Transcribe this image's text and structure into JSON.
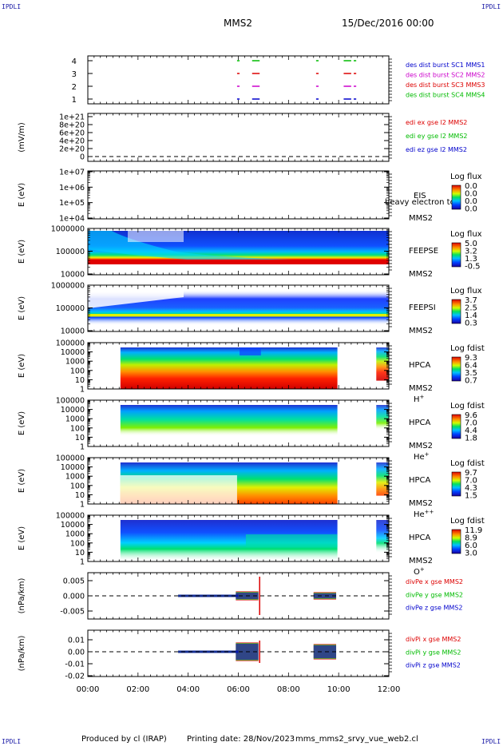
{
  "header": {
    "corner_label": "IPDLI",
    "spacecraft": "MMS2",
    "datetime": "15/Dec/2016 00:00"
  },
  "footer": {
    "produced_by": "Produced by cl (IRAP)",
    "printing_date": "Printing date: 28/Nov/2023",
    "script_name": "mms_mms2_srvy_vue_web2.cl"
  },
  "chart_data": {
    "type": "multi-panel time series / spectrogram",
    "x_axis": {
      "range": [
        "00:00",
        "12:00"
      ],
      "tick_labels": [
        "00:00",
        "02:00",
        "04:00",
        "06:00",
        "08:00",
        "10:00",
        "12:00"
      ]
    },
    "colors": {
      "mms1": "#0000cc",
      "mms2": "#cc00cc",
      "mms3": "#dd0000",
      "mms4": "#00bb00",
      "x": "#dd0000",
      "y": "#00bb00",
      "z": "#0000cc"
    },
    "panels": [
      {
        "id": "burst",
        "y_ticks": [
          "4",
          "3",
          "2",
          "1"
        ],
        "legend": [
          "des dist burst SC1 MMS1",
          "des dist burst SC2 MMS2",
          "des dist burst SC3 MMS3",
          "des dist burst SC4 MMS4"
        ],
        "intervals_hours": [
          [
            5.95,
            6.05
          ],
          [
            6.55,
            6.85
          ],
          [
            9.1,
            9.2
          ],
          [
            10.2,
            10.5
          ],
          [
            10.6,
            10.7
          ]
        ]
      },
      {
        "id": "edi",
        "ylabel": "(mV/m)",
        "y_ticks": [
          "1e+21",
          "8e+20",
          "6e+20",
          "4e+20",
          "2e+20",
          "0"
        ],
        "legend": [
          "edi ex gse l2 MMS2",
          "edi ey gse l2 MMS2",
          "edi ez gse l2 MMS2"
        ]
      },
      {
        "id": "eis",
        "ylabel": "E (eV)",
        "y_ticks": [
          "1e+07",
          "1e+06",
          "1e+05",
          "1e+04"
        ],
        "instrument": "EIS",
        "spacecraft": "MMS2",
        "subtitle": "heavy electron to",
        "colorbar_title": "Log flux",
        "colorbar_ticks": [
          "0.0",
          "0.0",
          "0.0",
          "0.0"
        ]
      },
      {
        "id": "feepse",
        "ylabel": "E (eV)",
        "y_ticks": [
          "1000000",
          "100000",
          "10000"
        ],
        "instrument": "FEEPSE",
        "spacecraft": "MMS2",
        "colorbar_title": "Log flux",
        "colorbar_ticks": [
          "5.0",
          "3.2",
          "1.3",
          "-0.5"
        ]
      },
      {
        "id": "feepsi",
        "ylabel": "E (eV)",
        "y_ticks": [
          "1000000",
          "100000",
          "10000"
        ],
        "instrument": "FEEPSI",
        "spacecraft": "MMS2",
        "colorbar_title": "Log flux",
        "colorbar_ticks": [
          "3.7",
          "2.5",
          "1.4",
          "0.3"
        ]
      },
      {
        "id": "hpca_h",
        "ylabel": "E (eV)",
        "y_ticks": [
          "100000",
          "10000",
          "1000",
          "100",
          "10",
          "1"
        ],
        "instrument": "HPCA",
        "spacecraft": "MMS2",
        "species": "H",
        "species_sup": "+",
        "colorbar_title": "Log fdist",
        "colorbar_ticks": [
          "9.3",
          "6.4",
          "3.5",
          "0.7"
        ]
      },
      {
        "id": "hpca_he",
        "ylabel": "E (eV)",
        "y_ticks": [
          "100000",
          "10000",
          "1000",
          "100",
          "10",
          "1"
        ],
        "instrument": "HPCA",
        "spacecraft": "MMS2",
        "species": "He",
        "species_sup": "+",
        "colorbar_title": "Log fdist",
        "colorbar_ticks": [
          "9.6",
          "7.0",
          "4.4",
          "1.8"
        ]
      },
      {
        "id": "hpca_hepp",
        "ylabel": "E (eV)",
        "y_ticks": [
          "100000",
          "10000",
          "1000",
          "100",
          "10",
          "1"
        ],
        "instrument": "HPCA",
        "spacecraft": "MMS2",
        "species": "He",
        "species_sup": "++",
        "colorbar_title": "Log fdist",
        "colorbar_ticks": [
          "9.7",
          "7.0",
          "4.3",
          "1.5"
        ]
      },
      {
        "id": "hpca_o",
        "ylabel": "E (eV)",
        "y_ticks": [
          "100000",
          "10000",
          "1000",
          "100",
          "10",
          "1"
        ],
        "instrument": "HPCA",
        "spacecraft": "MMS2",
        "species": "O",
        "species_sup": "+",
        "colorbar_title": "Log fdist",
        "colorbar_ticks": [
          "11.9",
          "8.9",
          "6.0",
          "3.0"
        ]
      },
      {
        "id": "divpe",
        "ylabel": "(nPa/km)",
        "y_ticks": [
          "0.005",
          "0.000",
          "-0.005"
        ],
        "legend": [
          "divPe x gse MMS2",
          "divPe y gse MMS2",
          "divPe z gse MMS2"
        ]
      },
      {
        "id": "divpi",
        "ylabel": "(nPa/km)",
        "y_ticks": [
          "0.01",
          "0.00",
          "-0.01",
          "-0.02"
        ],
        "legend": [
          "divPi x gse MMS2",
          "divPi y gse MMS2",
          "divPi z gse MMS2"
        ]
      }
    ]
  }
}
